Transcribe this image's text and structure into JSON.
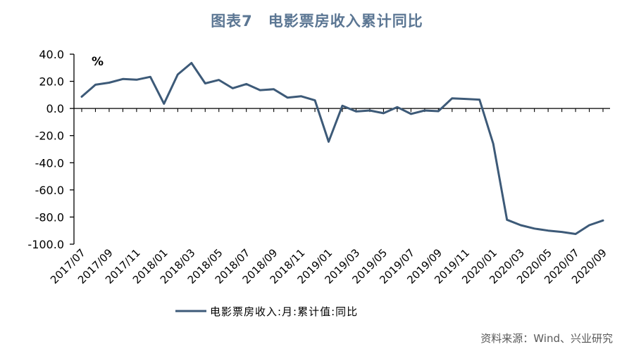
{
  "title": "图表7　电影票房收入累计同比",
  "source": "资料来源：Wind、兴业研究",
  "chart_data": {
    "type": "line",
    "unit_label": "%",
    "ylim": [
      -100,
      40
    ],
    "yticks": [
      40,
      20,
      0,
      -20,
      -40,
      -60,
      -80,
      -100
    ],
    "ytick_labels": [
      "40.0",
      "20.0",
      "0.0",
      "-20.0",
      "-40.0",
      "-60.0",
      "-80.0",
      "-100.0"
    ],
    "x": [
      "2017/07",
      "2017/08",
      "2017/09",
      "2017/10",
      "2017/11",
      "2017/12",
      "2018/01",
      "2018/02",
      "2018/03",
      "2018/04",
      "2018/05",
      "2018/06",
      "2018/07",
      "2018/08",
      "2018/09",
      "2018/10",
      "2018/11",
      "2018/12",
      "2019/01",
      "2019/02",
      "2019/03",
      "2019/04",
      "2019/05",
      "2019/06",
      "2019/07",
      "2019/08",
      "2019/09",
      "2019/10",
      "2019/11",
      "2019/12",
      "2020/01",
      "2020/02",
      "2020/03",
      "2020/04",
      "2020/05",
      "2020/06",
      "2020/07",
      "2020/08",
      "2020/09"
    ],
    "xtick_labels": [
      "2017/07",
      "2017/09",
      "2017/11",
      "2018/01",
      "2018/03",
      "2018/05",
      "2018/07",
      "2018/09",
      "2018/11",
      "2019/01",
      "2019/03",
      "2019/05",
      "2019/07",
      "2019/09",
      "2019/11",
      "2020/01",
      "2020/03",
      "2020/05",
      "2020/07",
      "2020/09"
    ],
    "series": [
      {
        "name": "电影票房收入:月:累计值:同比",
        "color": "#3d5a78",
        "values": [
          8.7,
          17.5,
          19.0,
          21.7,
          21.2,
          23.3,
          3.5,
          25.0,
          33.5,
          18.5,
          21.0,
          14.9,
          18.0,
          13.5,
          14.2,
          8.0,
          9.0,
          6.0,
          -24.5,
          2.0,
          -2.2,
          -1.5,
          -3.5,
          1.0,
          -4.0,
          -1.5,
          -2.0,
          7.5,
          7.0,
          6.5,
          -26.0,
          -82.0,
          -86.0,
          -88.5,
          -90.0,
          -91.0,
          -92.5,
          -86.0,
          -82.5
        ]
      }
    ],
    "legend_position": "bottom-left"
  }
}
